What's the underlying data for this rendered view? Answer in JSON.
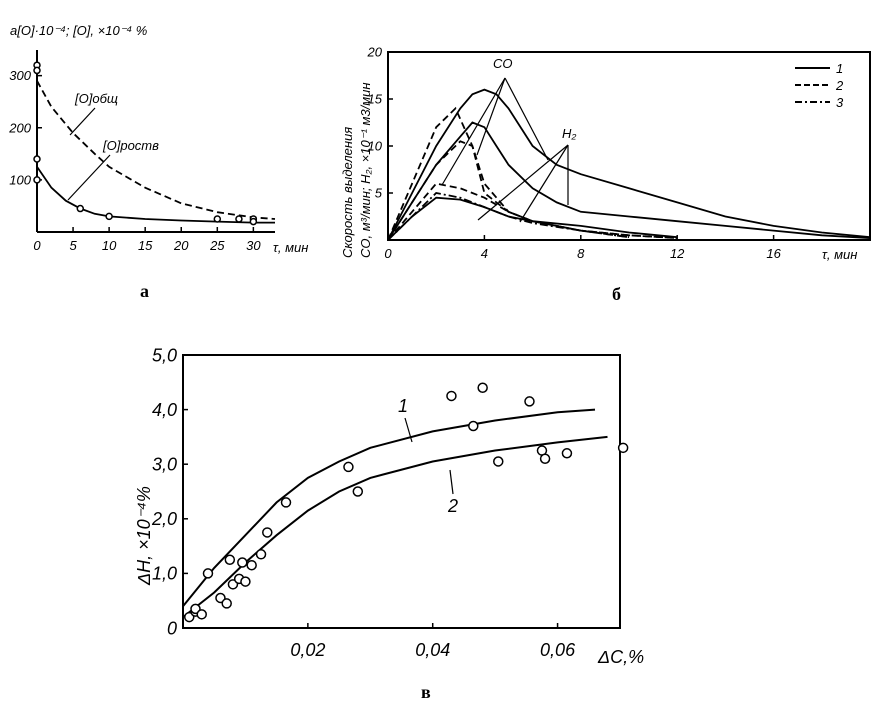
{
  "chart_data": [
    {
      "id": "a",
      "type": "line",
      "panel_label": "а",
      "ylabel": "a[O]·10⁻⁴; [O], ×10⁻⁴ %",
      "xlabel": "τ, мин",
      "xlim": [
        0,
        33
      ],
      "ylim": [
        0,
        330
      ],
      "xticks": [
        "0",
        "5",
        "10",
        "15",
        "20",
        "25",
        "30"
      ],
      "yticks": [
        "100",
        "200",
        "300"
      ],
      "series": [
        {
          "name": "[O]общ",
          "style": "dashed",
          "x": [
            0,
            2,
            5,
            8,
            10,
            15,
            20,
            25,
            30,
            33
          ],
          "y": [
            290,
            240,
            190,
            150,
            125,
            85,
            55,
            38,
            28,
            25
          ]
        },
        {
          "name": "[O]роств",
          "style": "solid",
          "x": [
            0,
            2,
            4,
            6,
            8,
            10,
            15,
            20,
            25,
            30,
            33
          ],
          "y": [
            125,
            85,
            60,
            45,
            35,
            30,
            25,
            22,
            20,
            18,
            18
          ]
        }
      ],
      "markers": {
        "x": [
          0,
          0,
          0,
          0,
          6,
          10,
          25,
          28,
          30,
          30
        ],
        "y": [
          320,
          310,
          140,
          100,
          45,
          30,
          25,
          25,
          25,
          20
        ]
      }
    },
    {
      "id": "b",
      "type": "line",
      "panel_label": "б",
      "ylabel_line1": "Скорость выделения",
      "ylabel_line2": "CO, м³/мин; H₂, ×10⁻¹ м3/мин",
      "xlabel": "τ, мин",
      "xlim": [
        0,
        20
      ],
      "ylim": [
        0,
        20
      ],
      "xticks": [
        "0",
        "4",
        "8",
        "12",
        "16"
      ],
      "yticks": [
        "5",
        "10",
        "15",
        "20"
      ],
      "annotations": [
        "CO",
        "H₂"
      ],
      "legend": {
        "position": "top-right",
        "entries": [
          "1",
          "2",
          "3"
        ]
      },
      "series": [
        {
          "name": "1",
          "group": "CO",
          "style": "solid",
          "x": [
            0,
            1,
            2,
            3,
            3.5,
            4,
            4.5,
            5,
            6,
            7,
            8,
            10,
            12,
            14,
            16,
            18,
            20
          ],
          "y": [
            0,
            5,
            10,
            14,
            15.5,
            16,
            15.5,
            14,
            10,
            8,
            7,
            5.5,
            4,
            2.5,
            1.5,
            0.8,
            0.3
          ]
        },
        {
          "name": "1",
          "group": "CO",
          "style": "solid",
          "x": [
            0,
            1,
            2,
            3,
            3.5,
            4,
            4.5,
            5,
            6,
            7,
            8,
            10,
            12,
            14,
            16,
            18,
            20
          ],
          "y": [
            0,
            4,
            8,
            11,
            12.5,
            12,
            10,
            8,
            5.5,
            4,
            3,
            2.5,
            2,
            1.5,
            1,
            0.5,
            0.2
          ]
        },
        {
          "name": "2",
          "group": "CO",
          "style": "dashed",
          "x": [
            0,
            1,
            2,
            2.8,
            3.5,
            4,
            5,
            6,
            8,
            10,
            12
          ],
          "y": [
            0,
            6,
            12,
            14,
            10,
            5,
            3,
            2,
            1,
            0.5,
            0.2
          ]
        },
        {
          "name": "2",
          "group": "CO",
          "style": "dashed",
          "x": [
            0,
            1,
            2,
            3,
            3.5,
            4,
            5,
            6,
            8,
            10,
            12
          ],
          "y": [
            0,
            4,
            8,
            10.5,
            10,
            6,
            3,
            2,
            1,
            0.5,
            0.2
          ]
        },
        {
          "name": "1",
          "group": "H₂",
          "style": "solid",
          "x": [
            0,
            1,
            2,
            3,
            4,
            5,
            6,
            8,
            10,
            12
          ],
          "y": [
            0,
            2.5,
            4.5,
            4.3,
            3.5,
            2.5,
            2,
            1.5,
            0.8,
            0.3
          ]
        },
        {
          "name": "2",
          "group": "H₂",
          "style": "dashed",
          "x": [
            0,
            1,
            2,
            3,
            4,
            5,
            6,
            8,
            10
          ],
          "y": [
            0,
            3,
            6,
            5.5,
            4.5,
            3,
            2,
            1,
            0.3
          ]
        },
        {
          "name": "3",
          "group": "H₂",
          "style": "dashdot",
          "x": [
            0,
            1,
            2,
            3,
            4,
            5,
            6,
            8,
            10
          ],
          "y": [
            0,
            2.5,
            5,
            4.5,
            3.5,
            2.5,
            1.8,
            1,
            0.3
          ]
        }
      ]
    },
    {
      "id": "c",
      "type": "scatter",
      "panel_label": "в",
      "ylabel": "ΔH, ×10⁻⁴%",
      "xlabel": "ΔC,%",
      "xlim": [
        0,
        0.07
      ],
      "ylim": [
        0,
        5.0
      ],
      "xticks": [
        "0,02",
        "0,04",
        "0,06"
      ],
      "yticks": [
        "0",
        "1,0",
        "2,0",
        "3,0",
        "4,0",
        "5,0"
      ],
      "series": [
        {
          "name": "1",
          "style": "solid",
          "x": [
            0,
            0.005,
            0.01,
            0.015,
            0.02,
            0.025,
            0.03,
            0.04,
            0.05,
            0.06,
            0.066
          ],
          "y": [
            0.4,
            1.1,
            1.7,
            2.3,
            2.75,
            3.05,
            3.3,
            3.6,
            3.8,
            3.95,
            4.0
          ]
        },
        {
          "name": "2",
          "style": "solid",
          "x": [
            0,
            0.005,
            0.01,
            0.015,
            0.02,
            0.025,
            0.03,
            0.04,
            0.05,
            0.06,
            0.068
          ],
          "y": [
            0.2,
            0.65,
            1.2,
            1.7,
            2.15,
            2.5,
            2.75,
            3.05,
            3.25,
            3.4,
            3.5
          ]
        }
      ],
      "points": {
        "x": [
          0.001,
          0.002,
          0.002,
          0.003,
          0.004,
          0.006,
          0.007,
          0.0075,
          0.008,
          0.009,
          0.0095,
          0.01,
          0.011,
          0.0125,
          0.0135,
          0.0165,
          0.0265,
          0.028,
          0.043,
          0.0465,
          0.048,
          0.0505,
          0.0555,
          0.0575,
          0.058,
          0.0615,
          0.0705
        ],
        "y": [
          0.2,
          0.3,
          0.35,
          0.25,
          1.0,
          0.55,
          0.45,
          1.25,
          0.8,
          0.9,
          1.2,
          0.85,
          1.15,
          1.35,
          1.75,
          2.3,
          2.95,
          2.5,
          4.25,
          3.7,
          4.4,
          3.05,
          4.15,
          3.25,
          3.1,
          3.2,
          3.3
        ]
      }
    }
  ]
}
